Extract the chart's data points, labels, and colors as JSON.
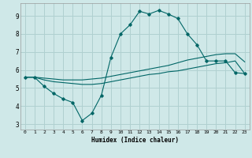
{
  "bg_color": "#cfe8e8",
  "grid_color": "#b0d0d0",
  "line_color": "#006666",
  "x_ticks": [
    0,
    1,
    2,
    3,
    4,
    5,
    6,
    7,
    8,
    9,
    10,
    11,
    12,
    13,
    14,
    15,
    16,
    17,
    18,
    19,
    20,
    21,
    22,
    23
  ],
  "y_ticks": [
    3,
    4,
    5,
    6,
    7,
    8,
    9
  ],
  "ylim": [
    2.7,
    9.7
  ],
  "xlim": [
    -0.5,
    23.5
  ],
  "xlabel": "Humidex (Indice chaleur)",
  "line1_x": [
    0,
    1,
    2,
    3,
    4,
    5,
    6,
    7,
    8,
    9,
    10,
    11,
    12,
    13,
    14,
    15,
    16,
    17,
    18,
    19,
    20,
    21,
    22,
    23
  ],
  "line1_y": [
    5.6,
    5.6,
    5.1,
    4.7,
    4.4,
    4.2,
    3.2,
    3.6,
    4.6,
    6.7,
    8.0,
    8.5,
    9.25,
    9.1,
    9.3,
    9.1,
    8.85,
    8.0,
    7.4,
    6.5,
    6.5,
    6.5,
    5.85,
    5.8
  ],
  "line2_x": [
    0,
    1,
    2,
    3,
    4,
    5,
    6,
    7,
    8,
    9,
    10,
    11,
    12,
    13,
    14,
    15,
    16,
    17,
    18,
    19,
    20,
    21,
    22,
    23
  ],
  "line2_y": [
    5.6,
    5.6,
    5.55,
    5.5,
    5.45,
    5.45,
    5.45,
    5.5,
    5.55,
    5.65,
    5.75,
    5.85,
    5.95,
    6.05,
    6.15,
    6.25,
    6.4,
    6.55,
    6.65,
    6.75,
    6.85,
    6.9,
    6.9,
    6.45
  ],
  "line3_x": [
    0,
    1,
    2,
    3,
    4,
    5,
    6,
    7,
    8,
    9,
    10,
    11,
    12,
    13,
    14,
    15,
    16,
    17,
    18,
    19,
    20,
    21,
    22,
    23
  ],
  "line3_y": [
    5.6,
    5.6,
    5.45,
    5.35,
    5.3,
    5.25,
    5.2,
    5.2,
    5.25,
    5.35,
    5.45,
    5.55,
    5.65,
    5.75,
    5.8,
    5.9,
    5.95,
    6.05,
    6.15,
    6.25,
    6.35,
    6.4,
    6.5,
    5.8
  ]
}
